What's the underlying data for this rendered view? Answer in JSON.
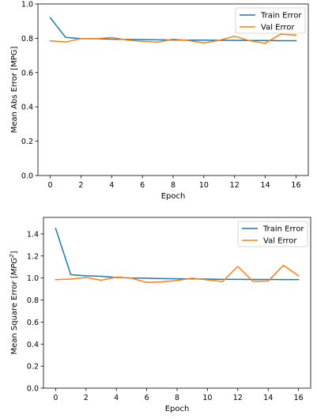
{
  "chart_data": [
    {
      "type": "line",
      "title": "",
      "xlabel": "Epoch",
      "ylabel": "Mean Abs Error [MPG]",
      "ylabel_sup": "",
      "xlim": [
        -0.8,
        16.8
      ],
      "ylim": [
        0,
        1.0
      ],
      "xticks": [
        0,
        2,
        4,
        6,
        8,
        10,
        12,
        14,
        16
      ],
      "yticks": [
        0.0,
        0.2,
        0.4,
        0.6,
        0.8,
        1.0
      ],
      "ytick_labels": [
        "0.0",
        "0.2",
        "0.4",
        "0.6",
        "0.8",
        "1.0"
      ],
      "grid": false,
      "legend": "top-right",
      "x": [
        0,
        1,
        2,
        3,
        4,
        5,
        6,
        7,
        8,
        9,
        10,
        11,
        12,
        13,
        14,
        15,
        16
      ],
      "series": [
        {
          "name": "Train Error",
          "color": "#1f77b4",
          "values": [
            0.92,
            0.805,
            0.798,
            0.797,
            0.795,
            0.793,
            0.792,
            0.791,
            0.79,
            0.789,
            0.789,
            0.788,
            0.788,
            0.787,
            0.787,
            0.786,
            0.786
          ]
        },
        {
          "name": "Val Error",
          "color": "#ff7f0e",
          "values": [
            0.785,
            0.778,
            0.798,
            0.797,
            0.805,
            0.79,
            0.782,
            0.777,
            0.795,
            0.787,
            0.773,
            0.788,
            0.812,
            0.785,
            0.771,
            0.824,
            0.819
          ]
        }
      ]
    },
    {
      "type": "line",
      "title": "",
      "xlabel": "Epoch",
      "ylabel": "Mean Square Error [",
      "ylabel_sup": "MPG^2",
      "ylabel_suffix": "]",
      "xlim": [
        -0.8,
        16.8
      ],
      "ylim": [
        0,
        1.55
      ],
      "xticks": [
        0,
        2,
        4,
        6,
        8,
        10,
        12,
        14,
        16
      ],
      "yticks": [
        0.0,
        0.2,
        0.4,
        0.6,
        0.8,
        1.0,
        1.2,
        1.4
      ],
      "ytick_labels": [
        "0.0",
        "0.2",
        "0.4",
        "0.6",
        "0.8",
        "1.0",
        "1.2",
        "1.4"
      ],
      "grid": false,
      "legend": "top-right",
      "x": [
        0,
        1,
        2,
        3,
        4,
        5,
        6,
        7,
        8,
        9,
        10,
        11,
        12,
        13,
        14,
        15,
        16
      ],
      "series": [
        {
          "name": "Train Error",
          "color": "#1f77b4",
          "values": [
            1.45,
            1.03,
            1.02,
            1.015,
            1.005,
            1.0,
            0.998,
            0.995,
            0.993,
            0.992,
            0.99,
            0.988,
            0.988,
            0.987,
            0.987,
            0.986,
            0.986
          ]
        },
        {
          "name": "Val Error",
          "color": "#ff7f0e",
          "values": [
            0.985,
            0.99,
            1.005,
            0.98,
            1.008,
            0.998,
            0.96,
            0.965,
            0.978,
            0.998,
            0.983,
            0.968,
            1.105,
            0.97,
            0.972,
            1.115,
            1.02
          ]
        }
      ]
    }
  ]
}
